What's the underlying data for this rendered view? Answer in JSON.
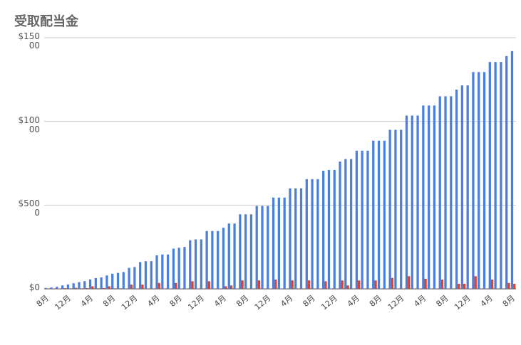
{
  "chart_data": {
    "type": "bar",
    "title": "受取配当金",
    "categories": [
      "8月",
      null,
      null,
      null,
      "12月",
      null,
      null,
      null,
      "4月",
      null,
      null,
      null,
      "8月",
      null,
      null,
      null,
      "12月",
      null,
      null,
      null,
      "4月",
      null,
      null,
      null,
      "8月",
      null,
      null,
      null,
      "12月",
      null,
      null,
      null,
      "4月",
      null,
      null,
      null,
      "8月",
      null,
      null,
      null,
      "12月",
      null,
      null,
      null,
      "4月",
      null,
      null,
      null,
      "8月",
      null,
      null,
      null,
      "12月",
      null,
      null,
      null,
      "4月",
      null,
      null,
      null,
      "8月",
      null,
      null,
      null,
      "12月",
      null,
      null,
      null,
      "4月",
      null,
      null,
      null,
      "8月",
      null,
      null,
      null,
      "12月",
      null,
      null,
      null,
      "4月",
      null,
      null,
      null,
      "8月"
    ],
    "series": [
      {
        "color": "#4a7fdc",
        "values": [
          50,
          80,
          120,
          200,
          260,
          330,
          400,
          460,
          560,
          640,
          680,
          800,
          900,
          950,
          1000,
          1250,
          1300,
          1600,
          1650,
          1650,
          2000,
          2050,
          2050,
          2400,
          2450,
          2500,
          2900,
          2950,
          2950,
          3450,
          3450,
          3450,
          3650,
          3900,
          3900,
          4450,
          4450,
          4450,
          4950,
          4950,
          4950,
          5450,
          5450,
          5450,
          6000,
          6000,
          6000,
          6550,
          6550,
          6550,
          7050,
          7100,
          7100,
          7600,
          7750,
          7750,
          8250,
          8250,
          8250,
          8850,
          8850,
          8850,
          9500,
          9500,
          9500,
          10350,
          10350,
          10350,
          10950,
          10950,
          10950,
          11500,
          11500,
          11500,
          11900,
          12150,
          12150,
          12950,
          12950,
          12950,
          13550,
          13550,
          13550,
          13900,
          14200
        ]
      },
      {
        "color": "#d9432f",
        "values": [
          10,
          20,
          20,
          40,
          30,
          60,
          30,
          40,
          150,
          30,
          40,
          150,
          30,
          30,
          20,
          250,
          20,
          250,
          20,
          20,
          350,
          20,
          20,
          350,
          20,
          20,
          450,
          20,
          20,
          450,
          20,
          20,
          150,
          200,
          20,
          500,
          20,
          20,
          500,
          20,
          20,
          550,
          20,
          20,
          500,
          20,
          20,
          500,
          20,
          20,
          450,
          20,
          20,
          500,
          200,
          20,
          500,
          20,
          20,
          500,
          20,
          20,
          650,
          20,
          20,
          750,
          20,
          20,
          600,
          20,
          20,
          550,
          20,
          20,
          300,
          300,
          20,
          750,
          20,
          20,
          550,
          20,
          20,
          350,
          300
        ]
      }
    ],
    "ylim": [
      0,
      15000
    ],
    "yticks": [
      {
        "value": 0,
        "label": "$0"
      },
      {
        "value": 5000,
        "label": "$5000"
      },
      {
        "value": 10000,
        "label": "$10000"
      },
      {
        "value": 15000,
        "label": "$15000"
      }
    ],
    "grid": true
  }
}
